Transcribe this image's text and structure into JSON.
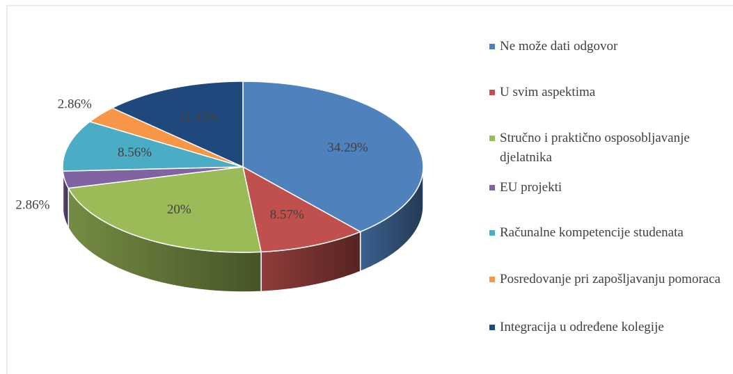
{
  "chart_data": {
    "type": "pie",
    "categories": [
      "Ne može dati odgovor",
      "U svim aspektima",
      "Stručno i praktično osposobljavanje djelatnika",
      "EU projekti",
      "Računalne kompetencije studenata",
      "Posredovanje pri zapošljavanju pomoraca",
      "Integracija u određene kolegije"
    ],
    "values": [
      34.29,
      8.57,
      20,
      2.86,
      8.56,
      2.86,
      11.43
    ],
    "value_labels": [
      "34.29%",
      "8.57%",
      "20%",
      "2.86%",
      "8.56%",
      "2.86%",
      "11.43%"
    ],
    "colors": [
      "#4f81bd",
      "#c0504d",
      "#9bbb59",
      "#8064a2",
      "#4bacc6",
      "#f79646",
      "#1f497d"
    ],
    "legend": "right"
  }
}
